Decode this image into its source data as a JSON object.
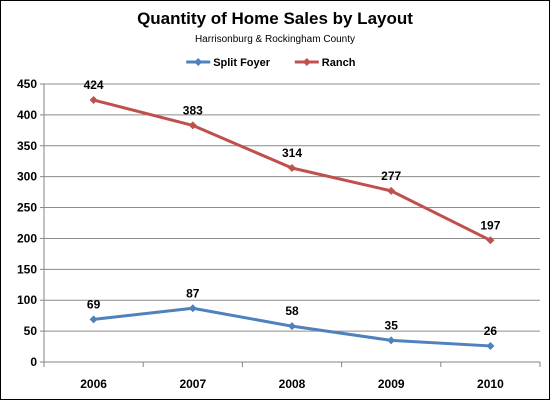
{
  "chart_data": {
    "type": "line",
    "title": "Quantity of Home Sales by Layout",
    "subtitle": "Harrisonburg & Rockingham County",
    "categories": [
      "2006",
      "2007",
      "2008",
      "2009",
      "2010"
    ],
    "series": [
      {
        "name": "Split Foyer",
        "values": [
          69,
          87,
          58,
          35,
          26
        ],
        "color": "#4F81BD"
      },
      {
        "name": "Ranch",
        "values": [
          424,
          383,
          314,
          277,
          197
        ],
        "color": "#C0504D"
      }
    ],
    "ylim": [
      0,
      450
    ],
    "yticks": [
      0,
      50,
      100,
      150,
      200,
      250,
      300,
      350,
      400,
      450
    ],
    "grid": true,
    "legend": "top"
  }
}
